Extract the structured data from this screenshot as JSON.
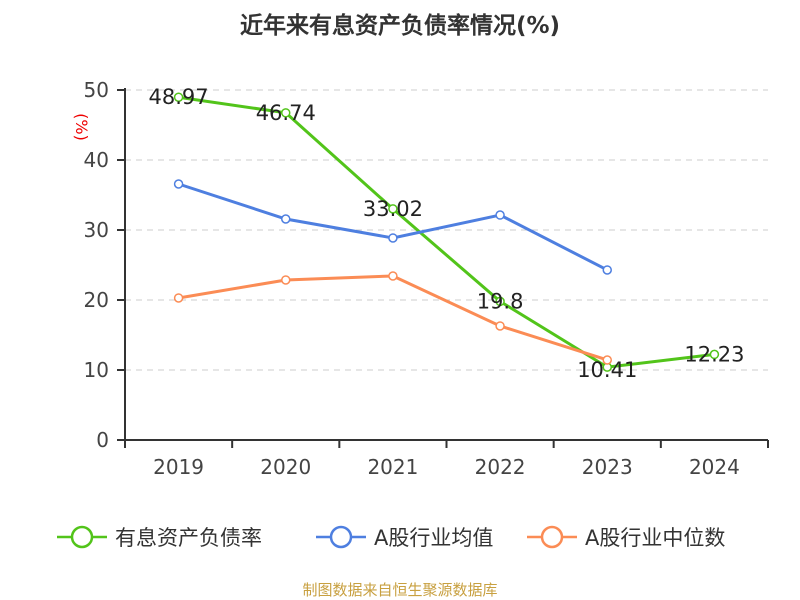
{
  "chart_data": {
    "type": "line",
    "title": "近年来有息资产负债率情况(%)",
    "ylabel": "(%)",
    "categories": [
      "2019",
      "2020",
      "2021",
      "2022",
      "2023",
      "2024"
    ],
    "ylim": [
      0,
      50
    ],
    "yticks": [
      0,
      10,
      20,
      30,
      40,
      50
    ],
    "grid": true,
    "legend_position": "bottom",
    "series": [
      {
        "name": "有息资产负债率",
        "color": "#52c41a",
        "values": [
          48.97,
          46.74,
          33.02,
          19.8,
          10.41,
          12.23
        ],
        "labels": [
          "48.97",
          "46.74",
          "33.02",
          "19.8",
          "10.41",
          "12.23"
        ]
      },
      {
        "name": "A股行业均值",
        "color": "#4e7fe0",
        "values": [
          36.57,
          31.57,
          28.86,
          32.14,
          24.29,
          null
        ]
      },
      {
        "name": "A股行业中位数",
        "color": "#fb8c55",
        "values": [
          20.29,
          22.86,
          23.43,
          16.29,
          11.43,
          null
        ]
      }
    ]
  },
  "source": "制图数据来自恒生聚源数据库"
}
